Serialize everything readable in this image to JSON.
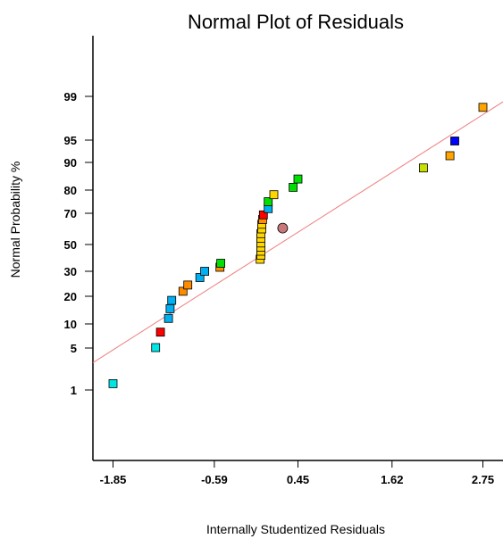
{
  "chart_data": {
    "type": "scatter",
    "title": "Normal Plot of Residuals",
    "xlabel": "Internally Studentized Residuals",
    "ylabel": "Normal Probability  %",
    "x_ticks": [
      -1.85,
      -0.59,
      0.45,
      1.62,
      2.75
    ],
    "x_tick_labels": [
      "-1.85",
      "-0.59",
      "0.45",
      "1.62",
      "2.75"
    ],
    "y_ticks": [
      1,
      5,
      10,
      20,
      30,
      50,
      70,
      80,
      90,
      95,
      99
    ],
    "y_tick_labels": [
      "1",
      "5",
      "10",
      "20",
      "30",
      "50",
      "70",
      "80",
      "90",
      "95",
      "99"
    ],
    "xlim": [
      -2.1,
      3.0
    ],
    "y_scale": "normal-probability",
    "reference_line": {
      "color": "#f08080",
      "from": [
        -2.1,
        3.6
      ],
      "to": [
        3.0,
        98.5
      ]
    },
    "points": [
      {
        "x": -1.85,
        "y": 1.6,
        "color": "#00e5e5"
      },
      {
        "x": -1.32,
        "y": 5.1,
        "color": "#00e5e5"
      },
      {
        "x": -1.26,
        "y": 8.3,
        "color": "#ff0000"
      },
      {
        "x": -1.16,
        "y": 12,
        "color": "#00b0f0"
      },
      {
        "x": -1.14,
        "y": 15.5,
        "color": "#00b0f0"
      },
      {
        "x": -1.12,
        "y": 18.5,
        "color": "#00b0f0"
      },
      {
        "x": -0.98,
        "y": 22,
        "color": "#ff8c00"
      },
      {
        "x": -0.92,
        "y": 24.5,
        "color": "#ff8c00"
      },
      {
        "x": -0.77,
        "y": 27.5,
        "color": "#00b0f0"
      },
      {
        "x": -0.71,
        "y": 30,
        "color": "#00b0f0"
      },
      {
        "x": -0.52,
        "y": 33,
        "color": "#ff8c00"
      },
      {
        "x": -0.51,
        "y": 36,
        "color": "#00e000"
      },
      {
        "x": -0.02,
        "y": 39,
        "color": "#ffd700"
      },
      {
        "x": -0.01,
        "y": 42,
        "color": "#ffd700"
      },
      {
        "x": -0.01,
        "y": 45,
        "color": "#ffd700"
      },
      {
        "x": -0.01,
        "y": 48,
        "color": "#ffd700"
      },
      {
        "x": -0.01,
        "y": 51,
        "color": "#ffd700"
      },
      {
        "x": -0.01,
        "y": 54,
        "color": "#ffd700"
      },
      {
        "x": -0.01,
        "y": 57,
        "color": "#ffd700"
      },
      {
        "x": 0.0,
        "y": 60,
        "color": "#ffd700"
      },
      {
        "x": 0.0,
        "y": 63,
        "color": "#ffd700"
      },
      {
        "x": 0.01,
        "y": 66,
        "color": "#ff8c00"
      },
      {
        "x": 0.02,
        "y": 69,
        "color": "#ff0000"
      },
      {
        "x": 0.08,
        "y": 72,
        "color": "#00b0f0"
      },
      {
        "x": 0.08,
        "y": 75,
        "color": "#00e000"
      },
      {
        "x": 0.15,
        "y": 78,
        "color": "#ffd700"
      },
      {
        "x": 0.39,
        "y": 81,
        "color": "#00e000"
      },
      {
        "x": 0.45,
        "y": 84,
        "color": "#00e000"
      },
      {
        "x": 2.01,
        "y": 88,
        "color": "#c6e000"
      },
      {
        "x": 2.34,
        "y": 91.5,
        "color": "#ffa500"
      },
      {
        "x": 2.4,
        "y": 94.8,
        "color": "#0000ff"
      },
      {
        "x": 2.75,
        "y": 98,
        "color": "#ffa500"
      }
    ],
    "highlight_point": {
      "x": 0.26,
      "y": 60.5,
      "color": "#c87878"
    },
    "grid": false
  }
}
